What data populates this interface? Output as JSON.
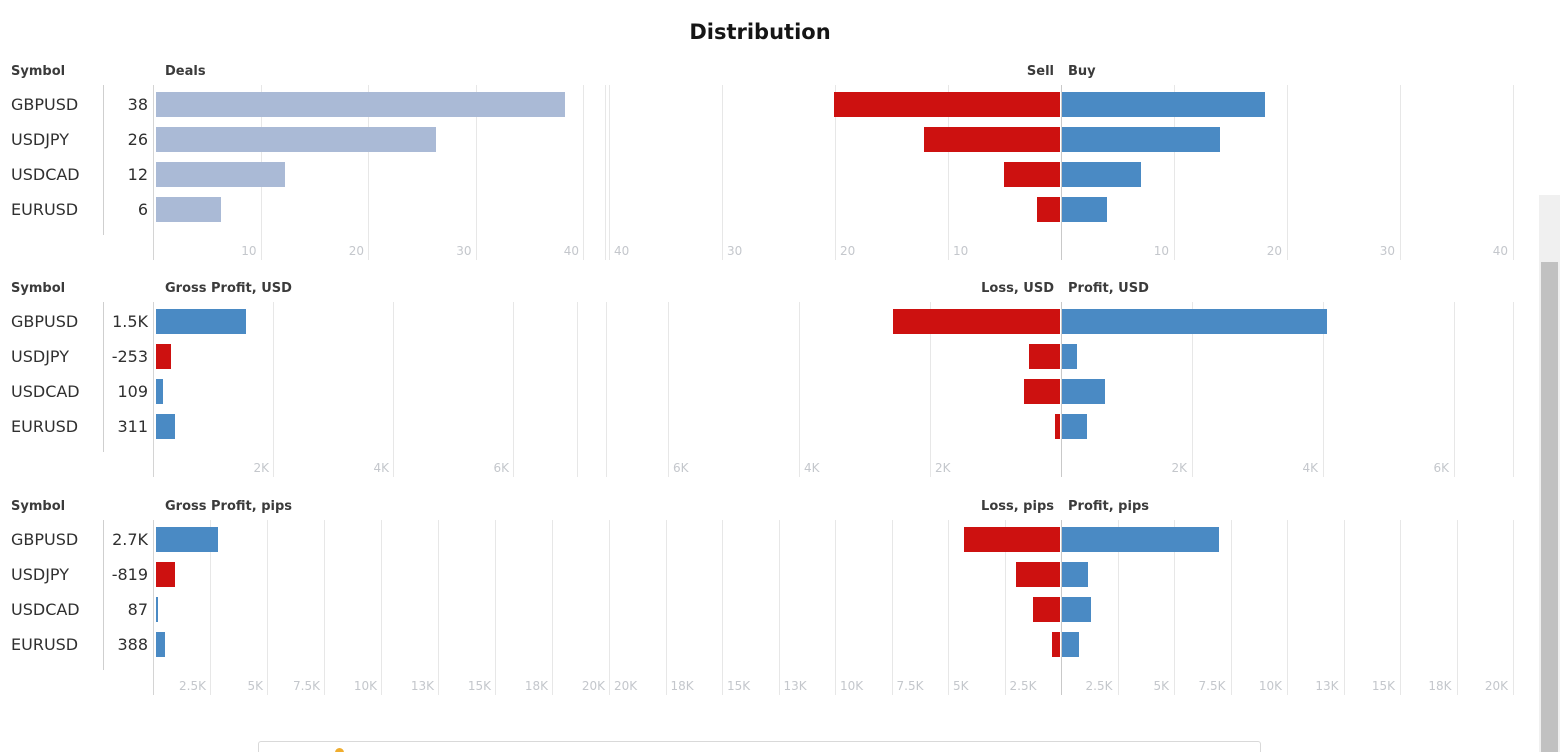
{
  "title": "Distribution",
  "colors": {
    "neutral_bar": "#aabad6",
    "positive_bar": "#4a8ac4",
    "negative_bar": "#cd1110",
    "sell_bar": "#cd1110",
    "buy_bar": "#4a8ac4",
    "tick_text": "#c4c7cc",
    "notice_accent": "#f0ad2e"
  },
  "chart_data": [
    {
      "type": "bar",
      "name": "deals",
      "symbol_header": "Symbol",
      "categories": [
        "GBPUSD",
        "USDJPY",
        "USDCAD",
        "EURUSD"
      ],
      "left_chart": {
        "title": "Deals",
        "values": [
          38,
          26,
          12,
          6
        ],
        "value_labels": [
          "38",
          "26",
          "12",
          "6"
        ],
        "xlim": [
          0,
          42
        ],
        "ticks": [
          {
            "value": 10,
            "label": "10"
          },
          {
            "value": 20,
            "label": "20"
          },
          {
            "value": 30,
            "label": "30"
          },
          {
            "value": 40,
            "label": "40"
          },
          {
            "value": 42,
            "label": ""
          }
        ]
      },
      "right_chart": {
        "title_left": "Sell",
        "title_right": "Buy",
        "xlim": [
          -40,
          40
        ],
        "series": [
          {
            "name": "Sell",
            "values": [
              20,
              12,
              5,
              2
            ]
          },
          {
            "name": "Buy",
            "values": [
              18,
              14,
              7,
              4
            ]
          }
        ],
        "ticks_left": [
          {
            "value": 40,
            "label": "40"
          },
          {
            "value": 30,
            "label": "30"
          },
          {
            "value": 20,
            "label": "20"
          },
          {
            "value": 10,
            "label": "10"
          }
        ],
        "ticks_right": [
          {
            "value": 10,
            "label": "10"
          },
          {
            "value": 20,
            "label": "20"
          },
          {
            "value": 30,
            "label": "30"
          },
          {
            "value": 40,
            "label": "40"
          }
        ]
      }
    },
    {
      "type": "bar",
      "name": "gross-profit-usd",
      "symbol_header": "Symbol",
      "categories": [
        "GBPUSD",
        "USDJPY",
        "USDCAD",
        "EURUSD"
      ],
      "left_chart": {
        "title": "Gross Profit, USD",
        "values": [
          1500,
          -253,
          109,
          311
        ],
        "value_labels": [
          "1.5K",
          "-253",
          "109",
          "311"
        ],
        "xlim": [
          0,
          7100
        ],
        "ticks": [
          {
            "value": 2000,
            "label": "2K"
          },
          {
            "value": 4000,
            "label": "4K"
          },
          {
            "value": 6000,
            "label": "6K"
          },
          {
            "value": 7066,
            "label": ""
          }
        ]
      },
      "right_chart": {
        "title_left": "Loss, USD",
        "title_right": "Profit, USD",
        "xlim": [
          -7000,
          7000
        ],
        "series": [
          {
            "name": "Loss, USD",
            "values": [
              2550,
              480,
              550,
              75
            ]
          },
          {
            "name": "Profit, USD",
            "values": [
              4050,
              227,
              659,
              386
            ]
          }
        ],
        "ticks_left": [
          {
            "value": 6945,
            "label": ""
          },
          {
            "value": 6000,
            "label": "6K"
          },
          {
            "value": 4000,
            "label": "4K"
          },
          {
            "value": 2000,
            "label": "2K"
          }
        ],
        "ticks_right": [
          {
            "value": 2000,
            "label": "2K"
          },
          {
            "value": 4000,
            "label": "4K"
          },
          {
            "value": 6000,
            "label": "6K"
          },
          {
            "value": 6900,
            "label": ""
          }
        ]
      }
    },
    {
      "type": "bar",
      "name": "gross-profit-pips",
      "symbol_header": "Symbol",
      "categories": [
        "GBPUSD",
        "USDJPY",
        "USDCAD",
        "EURUSD"
      ],
      "left_chart": {
        "title": "Gross Profit, pips",
        "values": [
          2700,
          -819,
          87,
          388
        ],
        "value_labels": [
          "2.7K",
          "-819",
          "87",
          "388"
        ],
        "xlim": [
          0,
          20000
        ],
        "ticks": [
          {
            "value": 2500,
            "label": "2.5K"
          },
          {
            "value": 5000,
            "label": "5K"
          },
          {
            "value": 7500,
            "label": "7.5K"
          },
          {
            "value": 10000,
            "label": "10K"
          },
          {
            "value": 12500,
            "label": "13K"
          },
          {
            "value": 15000,
            "label": "15K"
          },
          {
            "value": 17500,
            "label": "18K"
          },
          {
            "value": 20000,
            "label": "20K"
          }
        ]
      },
      "right_chart": {
        "title_left": "Loss, pips",
        "title_right": "Profit, pips",
        "xlim": [
          -20000,
          20000
        ],
        "series": [
          {
            "name": "Loss, pips",
            "values": [
              4250,
              1950,
              1190,
              355
            ]
          },
          {
            "name": "Profit, pips",
            "values": [
              6950,
              1131,
              1277,
              743
            ]
          }
        ],
        "ticks_left": [
          {
            "value": 20000,
            "label": "20K"
          },
          {
            "value": 17500,
            "label": "18K"
          },
          {
            "value": 15000,
            "label": "15K"
          },
          {
            "value": 12500,
            "label": "13K"
          },
          {
            "value": 10000,
            "label": "10K"
          },
          {
            "value": 7500,
            "label": "7.5K"
          },
          {
            "value": 5000,
            "label": "5K"
          },
          {
            "value": 2500,
            "label": "2.5K"
          }
        ],
        "ticks_right": [
          {
            "value": 2500,
            "label": "2.5K"
          },
          {
            "value": 5000,
            "label": "5K"
          },
          {
            "value": 7500,
            "label": "7.5K"
          },
          {
            "value": 10000,
            "label": "10K"
          },
          {
            "value": 12500,
            "label": "13K"
          },
          {
            "value": 15000,
            "label": "15K"
          },
          {
            "value": 17500,
            "label": "18K"
          },
          {
            "value": 20000,
            "label": "20K"
          }
        ]
      }
    }
  ]
}
